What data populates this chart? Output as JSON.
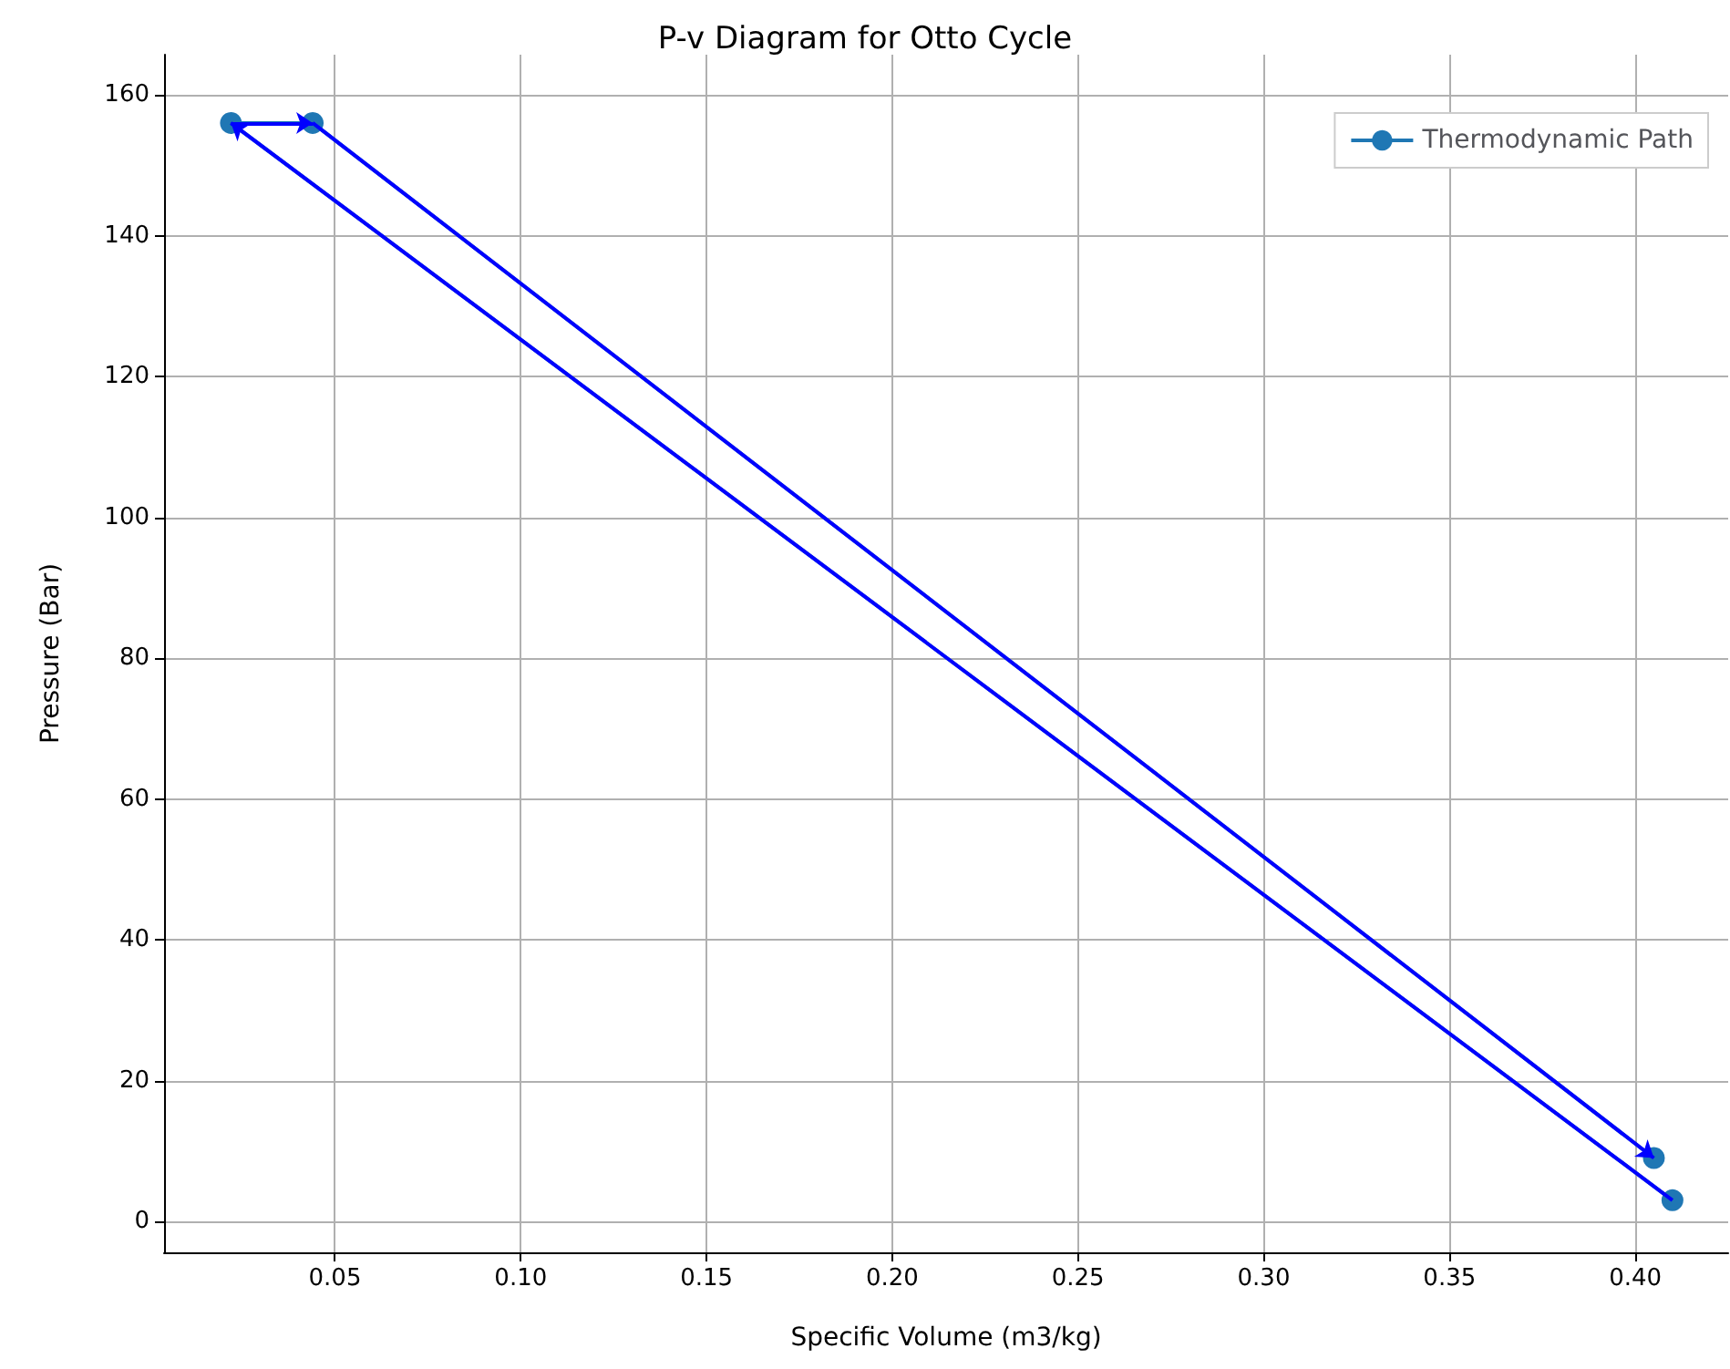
{
  "chart_data": {
    "type": "line",
    "title": "P-v Diagram for Otto Cycle",
    "xlabel": "Specific Volume (m3/kg)",
    "ylabel": "Pressure (Bar)",
    "x": [
      0.41,
      0.022,
      0.044,
      0.405
    ],
    "series": [
      {
        "name": "Thermodynamic Path",
        "color": "#1f77b4",
        "values": [
          3,
          156,
          156,
          9
        ]
      }
    ],
    "xlim": [
      0.004,
      0.425
    ],
    "xticks": [
      0.05,
      {
        "value": 0.1,
        "label": "0.10"
      },
      0.15,
      {
        "value": 0.2,
        "label": "0.20"
      },
      0.25,
      {
        "value": 0.3,
        "label": "0.30"
      },
      0.35,
      {
        "value": 0.4,
        "label": "0.40"
      }
    ],
    "ylim": [
      -4.4,
      165.7
    ],
    "yticks": [
      0,
      20,
      40,
      60,
      80,
      100,
      120,
      140,
      160
    ],
    "grid": true,
    "legend": "top right",
    "marker": "circle"
  }
}
